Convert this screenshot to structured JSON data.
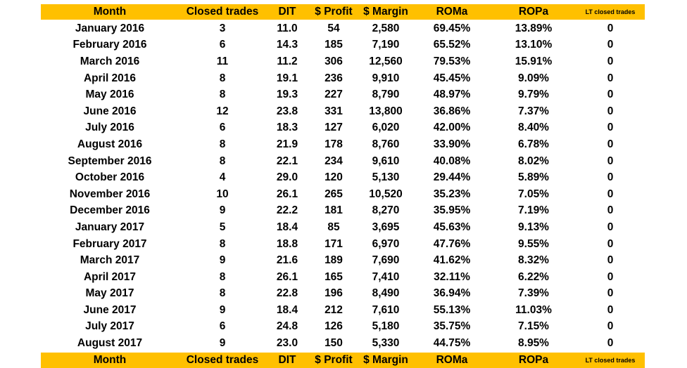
{
  "header": {
    "month": "Month",
    "closed_trades": "Closed trades",
    "dit": "DIT",
    "profit": "$ Profit",
    "margin": "$ Margin",
    "roma": "ROMa",
    "ropa": "ROPa",
    "lt_closed_trades": "LT closed trades"
  },
  "colors": {
    "header_bg": "#ffc000"
  },
  "rows": [
    [
      "January 2016",
      "3",
      "11.0",
      "54",
      "2,580",
      "69.45%",
      "13.89%",
      "0"
    ],
    [
      "February 2016",
      "6",
      "14.3",
      "185",
      "7,190",
      "65.52%",
      "13.10%",
      "0"
    ],
    [
      "March 2016",
      "11",
      "11.2",
      "306",
      "12,560",
      "79.53%",
      "15.91%",
      "0"
    ],
    [
      "April 2016",
      "8",
      "19.1",
      "236",
      "9,910",
      "45.45%",
      "9.09%",
      "0"
    ],
    [
      "May 2016",
      "8",
      "19.3",
      "227",
      "8,790",
      "48.97%",
      "9.79%",
      "0"
    ],
    [
      "June 2016",
      "12",
      "23.8",
      "331",
      "13,800",
      "36.86%",
      "7.37%",
      "0"
    ],
    [
      "July 2016",
      "6",
      "18.3",
      "127",
      "6,020",
      "42.00%",
      "8.40%",
      "0"
    ],
    [
      "August 2016",
      "8",
      "21.9",
      "178",
      "8,760",
      "33.90%",
      "6.78%",
      "0"
    ],
    [
      "September 2016",
      "8",
      "22.1",
      "234",
      "9,610",
      "40.08%",
      "8.02%",
      "0"
    ],
    [
      "October 2016",
      "4",
      "29.0",
      "120",
      "5,130",
      "29.44%",
      "5.89%",
      "0"
    ],
    [
      "November 2016",
      "10",
      "26.1",
      "265",
      "10,520",
      "35.23%",
      "7.05%",
      "0"
    ],
    [
      "December 2016",
      "9",
      "22.2",
      "181",
      "8,270",
      "35.95%",
      "7.19%",
      "0"
    ],
    [
      "January 2017",
      "5",
      "18.4",
      "85",
      "3,695",
      "45.63%",
      "9.13%",
      "0"
    ],
    [
      "February 2017",
      "8",
      "18.8",
      "171",
      "6,970",
      "47.76%",
      "9.55%",
      "0"
    ],
    [
      "March 2017",
      "9",
      "21.6",
      "189",
      "7,690",
      "41.62%",
      "8.32%",
      "0"
    ],
    [
      "April 2017",
      "8",
      "26.1",
      "165",
      "7,410",
      "32.11%",
      "6.22%",
      "0"
    ],
    [
      "May 2017",
      "8",
      "22.8",
      "196",
      "8,490",
      "36.94%",
      "7.39%",
      "0"
    ],
    [
      "June 2017",
      "9",
      "18.4",
      "212",
      "7,610",
      "55.13%",
      "11.03%",
      "0"
    ],
    [
      "July 2017",
      "6",
      "24.8",
      "126",
      "5,180",
      "35.75%",
      "7.15%",
      "0"
    ],
    [
      "August 2017",
      "9",
      "23.0",
      "150",
      "5,330",
      "44.75%",
      "8.95%",
      "0"
    ]
  ]
}
